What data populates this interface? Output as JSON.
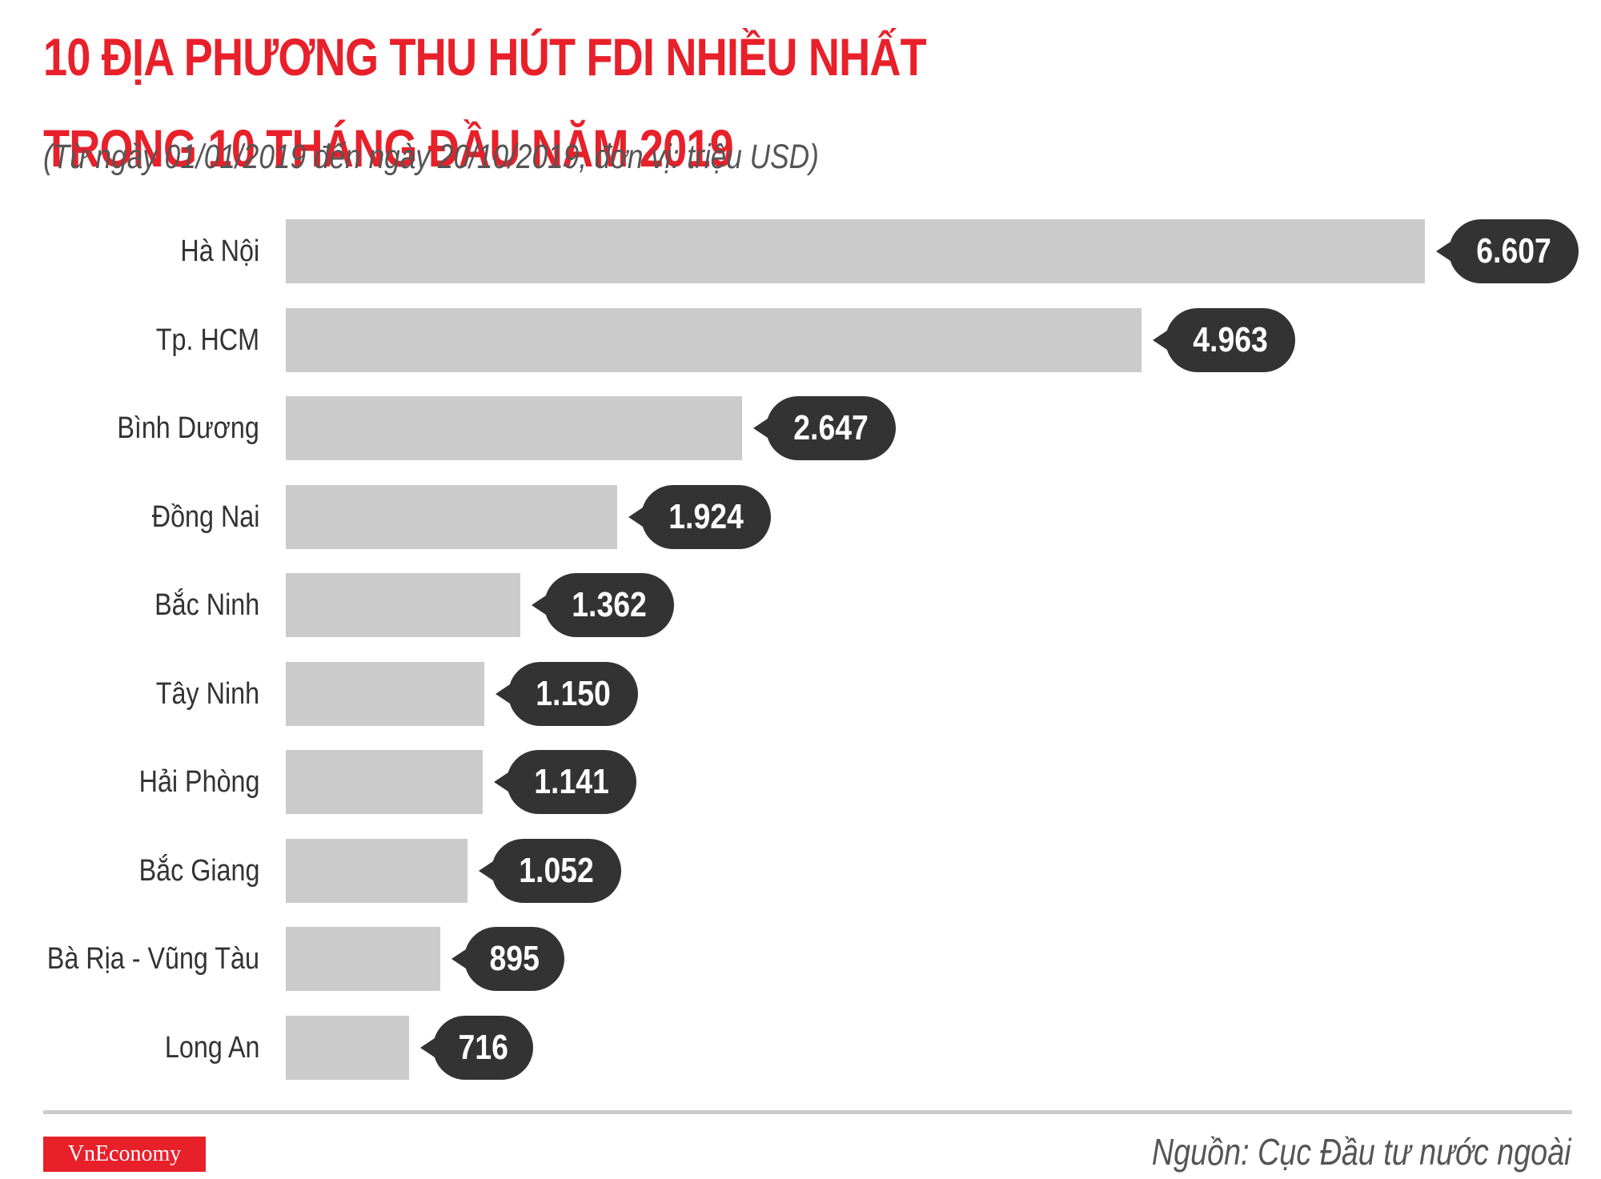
{
  "header": {
    "title_line1": "10 ĐỊA PHƯƠNG THU HÚT FDI NHIỀU NHẤT",
    "title_line2": "TRONG 10 THÁNG ĐẦU NĂM 2019",
    "subtitle": "(Từ ngày 01/01/2019 đến ngày 20/10/2019, đơn vị: triệu USD)"
  },
  "footer": {
    "logo": "VnEconomy",
    "source": "Nguồn: Cục Đầu tư nước ngoài"
  },
  "colors": {
    "title": "#e8202a",
    "bar": "#cccbcc",
    "bubble": "#333333",
    "logo_bg": "#e8202a"
  },
  "chart_data": {
    "type": "bar",
    "orientation": "horizontal",
    "title": "10 ĐỊA PHƯƠNG THU HÚT FDI NHIỀU NHẤT TRONG 10 THÁNG ĐẦU NĂM 2019",
    "subtitle": "(Từ ngày 01/01/2019 đến ngày 20/10/2019, đơn vị: triệu USD)",
    "xlabel": "",
    "ylabel": "",
    "unit": "triệu USD",
    "categories": [
      "Hà Nội",
      "Tp. HCM",
      "Bình Dương",
      "Đồng Nai",
      "Bắc Ninh",
      "Tây Ninh",
      "Hải Phòng",
      "Bắc Giang",
      "Bà Rịa - Vũng Tàu",
      "Long An"
    ],
    "values": [
      6607,
      4963,
      2647,
      1924,
      1362,
      1150,
      1141,
      1052,
      895,
      716
    ],
    "value_labels": [
      "6.607",
      "4.963",
      "2.647",
      "1.924",
      "1.362",
      "1.150",
      "1.141",
      "1.052",
      "895",
      "716"
    ],
    "grid": false,
    "legend": null
  }
}
